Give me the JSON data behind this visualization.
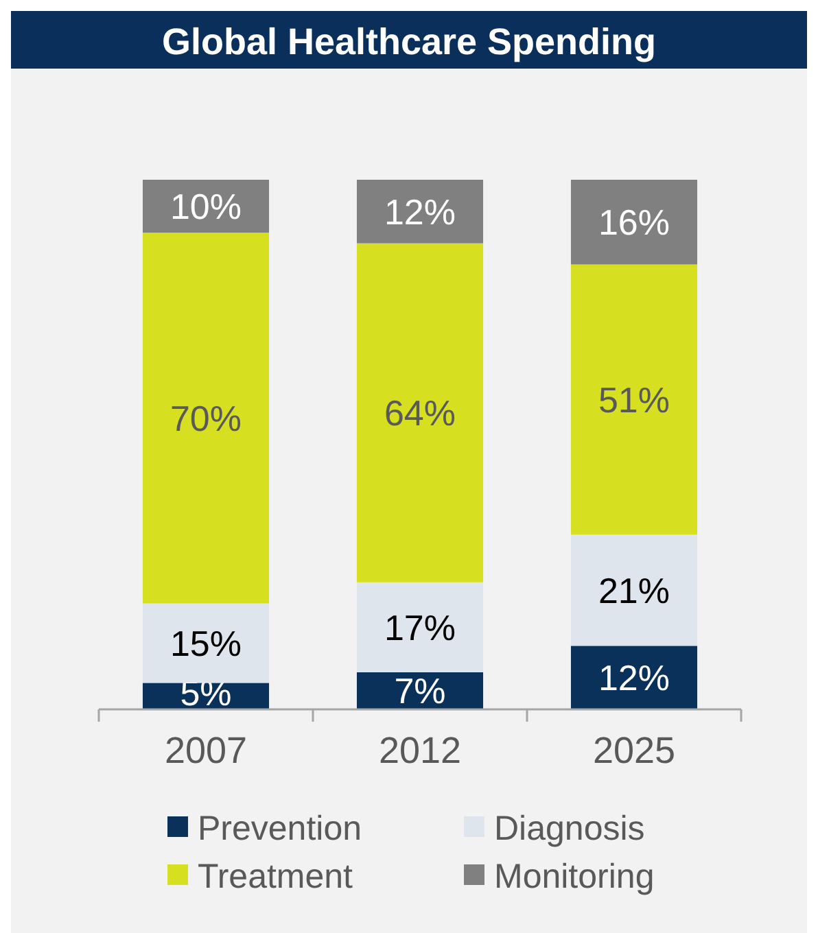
{
  "chart_data": {
    "type": "bar",
    "title": "Global Healthcare Spending",
    "categories": [
      "2007",
      "2012",
      "2025"
    ],
    "stacked": true,
    "legend": "bottom",
    "series": [
      {
        "name": "Prevention",
        "color": "#0a3159",
        "values": [
          5,
          7,
          12
        ],
        "value_labels": [
          "5%",
          "7%",
          "12%"
        ]
      },
      {
        "name": "Diagnosis",
        "color": "#dfe5ed",
        "values": [
          15,
          17,
          21
        ],
        "value_labels": [
          "15%",
          "17%",
          "21%"
        ]
      },
      {
        "name": "Treatment",
        "color": "#d6df20",
        "values": [
          70,
          64,
          51
        ],
        "value_labels": [
          "70%",
          "64%",
          "51%"
        ]
      },
      {
        "name": "Monitoring",
        "color": "#808080",
        "values": [
          10,
          12,
          16
        ],
        "value_labels": [
          "10%",
          "12%",
          "16%"
        ]
      }
    ]
  }
}
